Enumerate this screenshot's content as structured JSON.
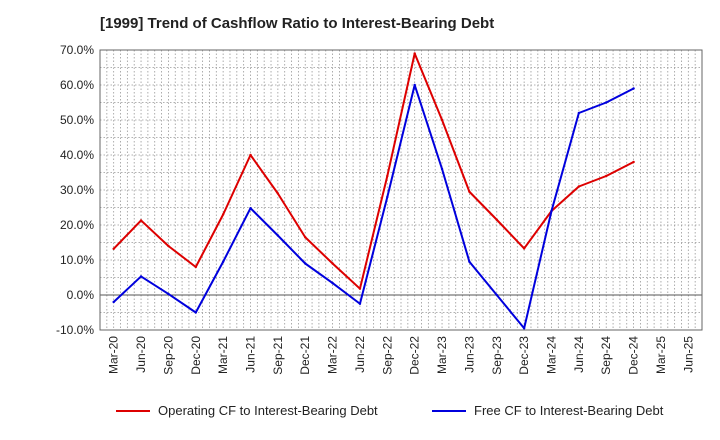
{
  "chart_data": {
    "type": "line",
    "title": "[1999]  Trend of Cashflow Ratio to Interest-Bearing Debt",
    "xlabel": "",
    "ylabel": "",
    "ylim": [
      -10,
      70
    ],
    "y_ticks": [
      -10,
      0,
      10,
      20,
      30,
      40,
      50,
      60,
      70
    ],
    "y_tick_labels": [
      "-10.0%",
      "0.0%",
      "10.0%",
      "20.0%",
      "30.0%",
      "40.0%",
      "50.0%",
      "60.0%",
      "70.0%"
    ],
    "categories": [
      "Mar-20",
      "Jun-20",
      "Sep-20",
      "Dec-20",
      "Mar-21",
      "Jun-21",
      "Sep-21",
      "Dec-21",
      "Mar-22",
      "Jun-22",
      "Sep-22",
      "Dec-22",
      "Mar-23",
      "Jun-23",
      "Sep-23",
      "Dec-23",
      "Mar-24",
      "Jun-24",
      "Sep-24",
      "Dec-24",
      "Mar-25",
      "Jun-25"
    ],
    "grid": true,
    "legend_position": "bottom",
    "series": [
      {
        "name": "Operating CF to Interest-Bearing Debt",
        "color": "#dd0000",
        "values": [
          13.2,
          21.3,
          14.0,
          8.0,
          23.0,
          40.0,
          29.0,
          16.5,
          9.0,
          1.8,
          34.0,
          69.0,
          50.0,
          29.5,
          21.5,
          13.3,
          24.0,
          31.0,
          34.0,
          38.0,
          null,
          null
        ]
      },
      {
        "name": "Free CF to Interest-Bearing Debt",
        "color": "#0000dd",
        "values": [
          -2.0,
          5.3,
          0.3,
          -5.0,
          9.5,
          24.8,
          17.0,
          9.0,
          3.4,
          -2.5,
          28.0,
          60.0,
          36.0,
          9.5,
          0.0,
          -9.5,
          24.0,
          52.0,
          55.0,
          59.0,
          null,
          null
        ]
      }
    ]
  }
}
